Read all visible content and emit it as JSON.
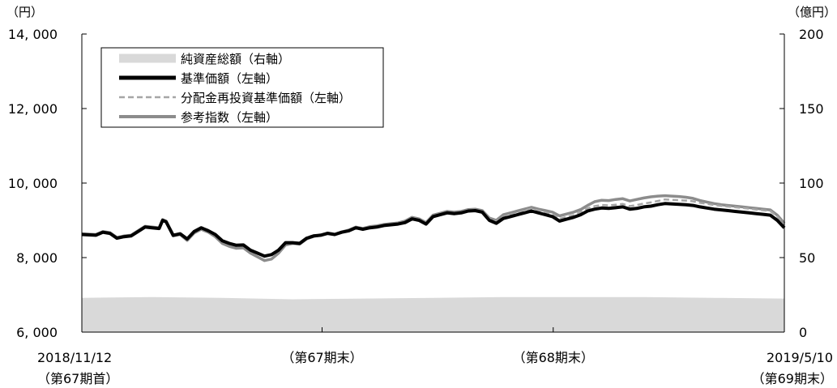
{
  "chart_data": {
    "type": "line",
    "left_axis": {
      "unit": "（円）",
      "ylim": [
        6000,
        14000
      ],
      "ticks": [
        6000,
        8000,
        10000,
        12000,
        14000
      ],
      "tick_labels": [
        "6, 000",
        "8, 000",
        "10, 000",
        "12, 000",
        "14, 000"
      ]
    },
    "right_axis": {
      "unit": "（億円）",
      "ylim": [
        0,
        200
      ],
      "ticks": [
        0,
        50,
        100,
        150,
        200
      ],
      "tick_labels": [
        "0",
        "50",
        "100",
        "150",
        "200"
      ]
    },
    "x_axis": {
      "start": "2018/11/12",
      "end": "2019/5/10",
      "labels": [
        {
          "pos": 0.0,
          "line1": "2018/11/12",
          "line2": "（第67期首）"
        },
        {
          "pos": 0.342,
          "line1": "（第67期末）",
          "line2": ""
        },
        {
          "pos": 0.671,
          "line1": "（第68期末）",
          "line2": ""
        },
        {
          "pos": 1.0,
          "line1": "2019/5/10",
          "line2": "（第69期末）"
        }
      ]
    },
    "legend": {
      "placement": "top-left",
      "entries": [
        {
          "name": "純資産総額（右軸）",
          "color": "#d9d9d9",
          "style": "area"
        },
        {
          "name": "基準価額（左軸）",
          "color": "#000000",
          "style": "thick"
        },
        {
          "name": "分配金再投資基準価額（左軸）",
          "color": "#a6a6a6",
          "style": "dashed"
        },
        {
          "name": "参考指数（左軸）",
          "color": "#8c8c8c",
          "style": "solid"
        }
      ]
    },
    "series": [
      {
        "name": "基準価額（左軸）",
        "axis": "left",
        "x": [
          0.0,
          0.02,
          0.03,
          0.04,
          0.05,
          0.06,
          0.07,
          0.08,
          0.09,
          0.1,
          0.11,
          0.115,
          0.12,
          0.13,
          0.14,
          0.15,
          0.16,
          0.17,
          0.18,
          0.19,
          0.2,
          0.21,
          0.22,
          0.23,
          0.24,
          0.25,
          0.26,
          0.27,
          0.28,
          0.29,
          0.3,
          0.31,
          0.32,
          0.33,
          0.34,
          0.35,
          0.36,
          0.37,
          0.38,
          0.39,
          0.4,
          0.41,
          0.42,
          0.43,
          0.44,
          0.45,
          0.46,
          0.47,
          0.48,
          0.49,
          0.5,
          0.51,
          0.52,
          0.53,
          0.54,
          0.55,
          0.56,
          0.57,
          0.58,
          0.59,
          0.6,
          0.61,
          0.62,
          0.63,
          0.64,
          0.65,
          0.66,
          0.67,
          0.68,
          0.69,
          0.7,
          0.71,
          0.72,
          0.73,
          0.74,
          0.75,
          0.76,
          0.77,
          0.78,
          0.79,
          0.8,
          0.81,
          0.82,
          0.83,
          0.84,
          0.85,
          0.86,
          0.87,
          0.88,
          0.89,
          0.9,
          0.91,
          0.92,
          0.93,
          0.94,
          0.95,
          0.96,
          0.97,
          0.98,
          0.99,
          1.0
        ],
        "values": [
          8620,
          8600,
          8680,
          8650,
          8520,
          8560,
          8580,
          8700,
          8820,
          8800,
          8780,
          9000,
          8960,
          8600,
          8640,
          8500,
          8700,
          8800,
          8720,
          8620,
          8450,
          8380,
          8330,
          8340,
          8200,
          8120,
          8040,
          8080,
          8200,
          8400,
          8400,
          8380,
          8520,
          8580,
          8600,
          8650,
          8620,
          8680,
          8720,
          8800,
          8760,
          8800,
          8820,
          8860,
          8880,
          8900,
          8940,
          9040,
          9000,
          8900,
          9100,
          9150,
          9200,
          9180,
          9200,
          9250,
          9260,
          9220,
          9000,
          8920,
          9050,
          9100,
          9150,
          9200,
          9250,
          9200,
          9150,
          9100,
          8980,
          9030,
          9080,
          9150,
          9250,
          9300,
          9330,
          9320,
          9340,
          9360,
          9300,
          9320,
          9360,
          9380,
          9420,
          9450,
          9440,
          9430,
          9420,
          9400,
          9360,
          9330,
          9300,
          9280,
          9260,
          9240,
          9220,
          9200,
          9180,
          9160,
          9140,
          9000,
          8800
        ]
      },
      {
        "name": "分配金再投資基準価額（左軸）",
        "axis": "left",
        "x": [
          0.0,
          0.02,
          0.03,
          0.04,
          0.05,
          0.06,
          0.07,
          0.08,
          0.09,
          0.1,
          0.11,
          0.115,
          0.12,
          0.13,
          0.14,
          0.15,
          0.16,
          0.17,
          0.18,
          0.19,
          0.2,
          0.21,
          0.22,
          0.23,
          0.24,
          0.25,
          0.26,
          0.27,
          0.28,
          0.29,
          0.3,
          0.31,
          0.32,
          0.33,
          0.34,
          0.35,
          0.36,
          0.37,
          0.38,
          0.39,
          0.4,
          0.41,
          0.42,
          0.43,
          0.44,
          0.45,
          0.46,
          0.47,
          0.48,
          0.49,
          0.5,
          0.51,
          0.52,
          0.53,
          0.54,
          0.55,
          0.56,
          0.57,
          0.58,
          0.59,
          0.6,
          0.61,
          0.62,
          0.63,
          0.64,
          0.65,
          0.66,
          0.67,
          0.68,
          0.69,
          0.7,
          0.71,
          0.72,
          0.73,
          0.74,
          0.75,
          0.76,
          0.77,
          0.78,
          0.79,
          0.8,
          0.81,
          0.82,
          0.83,
          0.84,
          0.85,
          0.86,
          0.87,
          0.88,
          0.89,
          0.9,
          0.91,
          0.92,
          0.93,
          0.94,
          0.95,
          0.96,
          0.97,
          0.98,
          0.99,
          1.0
        ],
        "values": [
          8620,
          8600,
          8680,
          8650,
          8520,
          8560,
          8580,
          8700,
          8820,
          8800,
          8780,
          9000,
          8960,
          8600,
          8640,
          8500,
          8700,
          8800,
          8720,
          8620,
          8450,
          8380,
          8330,
          8340,
          8200,
          8120,
          8040,
          8080,
          8200,
          8400,
          8410,
          8400,
          8540,
          8600,
          8620,
          8670,
          8640,
          8700,
          8740,
          8820,
          8780,
          8820,
          8840,
          8880,
          8900,
          8920,
          8960,
          9060,
          9020,
          8920,
          9120,
          9170,
          9220,
          9200,
          9220,
          9270,
          9280,
          9240,
          9040,
          8960,
          9100,
          9150,
          9200,
          9260,
          9310,
          9260,
          9210,
          9160,
          9040,
          9090,
          9140,
          9220,
          9320,
          9380,
          9410,
          9400,
          9420,
          9440,
          9380,
          9410,
          9450,
          9480,
          9520,
          9560,
          9550,
          9540,
          9530,
          9510,
          9470,
          9440,
          9410,
          9390,
          9370,
          9350,
          9330,
          9310,
          9290,
          9270,
          9250,
          9100,
          8880
        ]
      },
      {
        "name": "参考指数（左軸）",
        "axis": "left",
        "x": [
          0.0,
          0.02,
          0.03,
          0.04,
          0.05,
          0.06,
          0.07,
          0.08,
          0.09,
          0.1,
          0.11,
          0.115,
          0.12,
          0.13,
          0.14,
          0.15,
          0.16,
          0.17,
          0.18,
          0.19,
          0.2,
          0.21,
          0.22,
          0.23,
          0.24,
          0.25,
          0.26,
          0.27,
          0.28,
          0.29,
          0.3,
          0.31,
          0.32,
          0.33,
          0.34,
          0.35,
          0.36,
          0.37,
          0.38,
          0.39,
          0.4,
          0.41,
          0.42,
          0.43,
          0.44,
          0.45,
          0.46,
          0.47,
          0.48,
          0.49,
          0.5,
          0.51,
          0.52,
          0.53,
          0.54,
          0.55,
          0.56,
          0.57,
          0.58,
          0.59,
          0.6,
          0.61,
          0.62,
          0.63,
          0.64,
          0.65,
          0.66,
          0.67,
          0.68,
          0.69,
          0.7,
          0.71,
          0.72,
          0.73,
          0.74,
          0.75,
          0.76,
          0.77,
          0.78,
          0.79,
          0.8,
          0.81,
          0.82,
          0.83,
          0.84,
          0.85,
          0.86,
          0.87,
          0.88,
          0.89,
          0.9,
          0.91,
          0.92,
          0.93,
          0.94,
          0.95,
          0.96,
          0.97,
          0.98,
          0.99,
          1.0
        ],
        "values": [
          8640,
          8620,
          8700,
          8670,
          8540,
          8580,
          8600,
          8720,
          8840,
          8820,
          8800,
          9020,
          8980,
          8580,
          8620,
          8460,
          8660,
          8760,
          8680,
          8560,
          8380,
          8300,
          8250,
          8260,
          8120,
          8020,
          7920,
          7960,
          8120,
          8340,
          8380,
          8360,
          8500,
          8570,
          8600,
          8660,
          8620,
          8690,
          8740,
          8820,
          8780,
          8830,
          8850,
          8890,
          8910,
          8930,
          8980,
          9080,
          9040,
          8940,
          9140,
          9190,
          9240,
          9220,
          9240,
          9290,
          9300,
          9260,
          9060,
          9000,
          9150,
          9200,
          9250,
          9300,
          9350,
          9300,
          9260,
          9220,
          9120,
          9170,
          9220,
          9290,
          9400,
          9500,
          9540,
          9530,
          9560,
          9580,
          9520,
          9560,
          9600,
          9630,
          9650,
          9660,
          9650,
          9640,
          9620,
          9590,
          9530,
          9490,
          9450,
          9420,
          9400,
          9380,
          9360,
          9340,
          9320,
          9300,
          9280,
          9140,
          8920
        ]
      },
      {
        "name": "純資産総額（右軸）",
        "axis": "right",
        "style": "area",
        "x": [
          0.0,
          0.1,
          0.2,
          0.3,
          0.4,
          0.5,
          0.6,
          0.7,
          0.8,
          0.9,
          1.0
        ],
        "values": [
          23,
          23.5,
          23,
          22,
          22.5,
          23,
          23.5,
          23.5,
          23.5,
          23,
          22.5
        ]
      }
    ]
  }
}
